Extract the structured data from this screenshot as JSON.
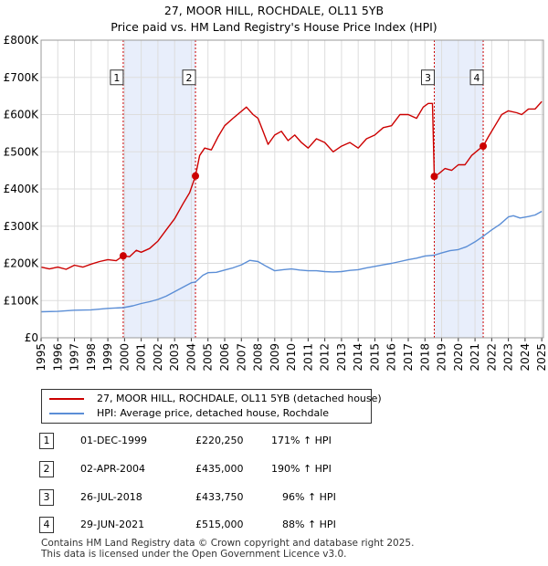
{
  "header": {
    "title": "27, MOOR HILL, ROCHDALE, OL11 5YB",
    "subtitle": "Price paid vs. HM Land Registry's House Price Index (HPI)"
  },
  "colors": {
    "property": "#cc0000",
    "hpi": "#5b8ed6",
    "shade": "#e8eefb",
    "marker": "#cc0000"
  },
  "chart_data": {
    "type": "line",
    "title": "27, MOOR HILL, ROCHDALE, OL11 5YB",
    "subtitle": "Price paid vs. HM Land Registry's House Price Index (HPI)",
    "xlabel": "",
    "ylabel": "",
    "xlim": [
      1995,
      2025.1
    ],
    "ylim": [
      0,
      800000
    ],
    "y_ticks": [
      0,
      100000,
      200000,
      300000,
      400000,
      500000,
      600000,
      700000,
      800000
    ],
    "y_tick_labels": [
      "£0",
      "£100K",
      "£200K",
      "£300K",
      "£400K",
      "£500K",
      "£600K",
      "£700K",
      "£800K"
    ],
    "x_tick_labels": [
      "1995",
      "1996",
      "1997",
      "1998",
      "1999",
      "2000",
      "2001",
      "2002",
      "2003",
      "2004",
      "2005",
      "2006",
      "2007",
      "2008",
      "2009",
      "2010",
      "2011",
      "2012",
      "2013",
      "2014",
      "2015",
      "2016",
      "2017",
      "2018",
      "2019",
      "2020",
      "2021",
      "2022",
      "2023",
      "2024",
      "2025"
    ],
    "grid": true,
    "shaded_spans": [
      [
        1999.92,
        2004.25
      ],
      [
        2018.56,
        2021.49
      ]
    ],
    "series": [
      {
        "name": "27, MOOR HILL, ROCHDALE, OL11 5YB (detached house)",
        "points": [
          [
            1995.0,
            190000
          ],
          [
            1995.5,
            185000
          ],
          [
            1996.0,
            190000
          ],
          [
            1996.5,
            184000
          ],
          [
            1997.0,
            195000
          ],
          [
            1997.5,
            190000
          ],
          [
            1998.0,
            198000
          ],
          [
            1998.5,
            205000
          ],
          [
            1999.0,
            210000
          ],
          [
            1999.5,
            207000
          ],
          [
            1999.92,
            220250
          ],
          [
            2000.3,
            218000
          ],
          [
            2000.7,
            235000
          ],
          [
            2001.0,
            230000
          ],
          [
            2001.5,
            240000
          ],
          [
            2002.0,
            260000
          ],
          [
            2002.5,
            290000
          ],
          [
            2003.0,
            320000
          ],
          [
            2003.5,
            360000
          ],
          [
            2003.9,
            390000
          ],
          [
            2004.25,
            435000
          ],
          [
            2004.5,
            490000
          ],
          [
            2004.8,
            510000
          ],
          [
            2005.2,
            505000
          ],
          [
            2005.6,
            540000
          ],
          [
            2006.0,
            570000
          ],
          [
            2006.5,
            590000
          ],
          [
            2006.9,
            605000
          ],
          [
            2007.3,
            620000
          ],
          [
            2007.7,
            600000
          ],
          [
            2008.0,
            590000
          ],
          [
            2008.3,
            555000
          ],
          [
            2008.6,
            520000
          ],
          [
            2009.0,
            545000
          ],
          [
            2009.4,
            555000
          ],
          [
            2009.8,
            530000
          ],
          [
            2010.2,
            545000
          ],
          [
            2010.6,
            525000
          ],
          [
            2011.0,
            510000
          ],
          [
            2011.5,
            535000
          ],
          [
            2012.0,
            525000
          ],
          [
            2012.5,
            500000
          ],
          [
            2013.0,
            515000
          ],
          [
            2013.5,
            525000
          ],
          [
            2014.0,
            510000
          ],
          [
            2014.5,
            535000
          ],
          [
            2015.0,
            545000
          ],
          [
            2015.5,
            565000
          ],
          [
            2016.0,
            570000
          ],
          [
            2016.5,
            600000
          ],
          [
            2017.0,
            600000
          ],
          [
            2017.5,
            590000
          ],
          [
            2017.9,
            620000
          ],
          [
            2018.2,
            630000
          ],
          [
            2018.45,
            630000
          ],
          [
            2018.56,
            433750
          ],
          [
            2018.8,
            440000
          ],
          [
            2019.2,
            455000
          ],
          [
            2019.6,
            450000
          ],
          [
            2020.0,
            465000
          ],
          [
            2020.4,
            465000
          ],
          [
            2020.8,
            490000
          ],
          [
            2021.2,
            505000
          ],
          [
            2021.49,
            515000
          ],
          [
            2021.8,
            540000
          ],
          [
            2022.2,
            570000
          ],
          [
            2022.6,
            600000
          ],
          [
            2023.0,
            610000
          ],
          [
            2023.5,
            605000
          ],
          [
            2023.8,
            600000
          ],
          [
            2024.2,
            615000
          ],
          [
            2024.6,
            615000
          ],
          [
            2025.0,
            635000
          ]
        ]
      },
      {
        "name": "HPI: Average price, detached house, Rochdale",
        "points": [
          [
            1995.0,
            70000
          ],
          [
            1996.0,
            71000
          ],
          [
            1997.0,
            74000
          ],
          [
            1998.0,
            75000
          ],
          [
            1999.0,
            79000
          ],
          [
            1999.92,
            81000
          ],
          [
            2000.5,
            86000
          ],
          [
            2001.0,
            92000
          ],
          [
            2001.5,
            97000
          ],
          [
            2002.0,
            103000
          ],
          [
            2002.5,
            112000
          ],
          [
            2003.0,
            124000
          ],
          [
            2003.5,
            136000
          ],
          [
            2004.0,
            148000
          ],
          [
            2004.25,
            150000
          ],
          [
            2004.7,
            168000
          ],
          [
            2005.0,
            175000
          ],
          [
            2005.5,
            176000
          ],
          [
            2006.0,
            182000
          ],
          [
            2006.5,
            188000
          ],
          [
            2007.0,
            196000
          ],
          [
            2007.5,
            208000
          ],
          [
            2008.0,
            205000
          ],
          [
            2008.5,
            192000
          ],
          [
            2009.0,
            180000
          ],
          [
            2009.5,
            183000
          ],
          [
            2010.0,
            185000
          ],
          [
            2010.5,
            182000
          ],
          [
            2011.0,
            180000
          ],
          [
            2011.5,
            180000
          ],
          [
            2012.0,
            178000
          ],
          [
            2012.5,
            177000
          ],
          [
            2013.0,
            178000
          ],
          [
            2013.5,
            181000
          ],
          [
            2014.0,
            183000
          ],
          [
            2014.5,
            188000
          ],
          [
            2015.0,
            192000
          ],
          [
            2015.5,
            196000
          ],
          [
            2016.0,
            200000
          ],
          [
            2016.5,
            205000
          ],
          [
            2017.0,
            210000
          ],
          [
            2017.5,
            214000
          ],
          [
            2018.0,
            220000
          ],
          [
            2018.56,
            222000
          ],
          [
            2019.0,
            228000
          ],
          [
            2019.5,
            234000
          ],
          [
            2020.0,
            237000
          ],
          [
            2020.5,
            245000
          ],
          [
            2021.0,
            258000
          ],
          [
            2021.49,
            273000
          ],
          [
            2022.0,
            290000
          ],
          [
            2022.5,
            305000
          ],
          [
            2023.0,
            325000
          ],
          [
            2023.3,
            328000
          ],
          [
            2023.7,
            322000
          ],
          [
            2024.2,
            326000
          ],
          [
            2024.6,
            330000
          ],
          [
            2025.0,
            340000
          ]
        ]
      }
    ],
    "sales": [
      {
        "label": "1",
        "x": 1999.92,
        "price": 220250
      },
      {
        "label": "2",
        "x": 2004.25,
        "price": 435000
      },
      {
        "label": "3",
        "x": 2018.56,
        "price": 433750
      },
      {
        "label": "4",
        "x": 2021.49,
        "price": 515000
      }
    ]
  },
  "legend": {
    "items": [
      {
        "label": "27, MOOR HILL, ROCHDALE, OL11 5YB (detached house)"
      },
      {
        "label": "HPI: Average price, detached house, Rochdale"
      }
    ]
  },
  "transactions": [
    {
      "num": "1",
      "date": "01-DEC-1999",
      "price": "£220,250",
      "hpi": "171% ↑ HPI"
    },
    {
      "num": "2",
      "date": "02-APR-2004",
      "price": "£435,000",
      "hpi": "190% ↑ HPI"
    },
    {
      "num": "3",
      "date": "26-JUL-2018",
      "price": "£433,750",
      "hpi": "96% ↑ HPI"
    },
    {
      "num": "4",
      "date": "29-JUN-2021",
      "price": "£515,000",
      "hpi": "88% ↑ HPI"
    }
  ],
  "footer": {
    "line1": "Contains HM Land Registry data © Crown copyright and database right 2025.",
    "line2": "This data is licensed under the Open Government Licence v3.0."
  }
}
